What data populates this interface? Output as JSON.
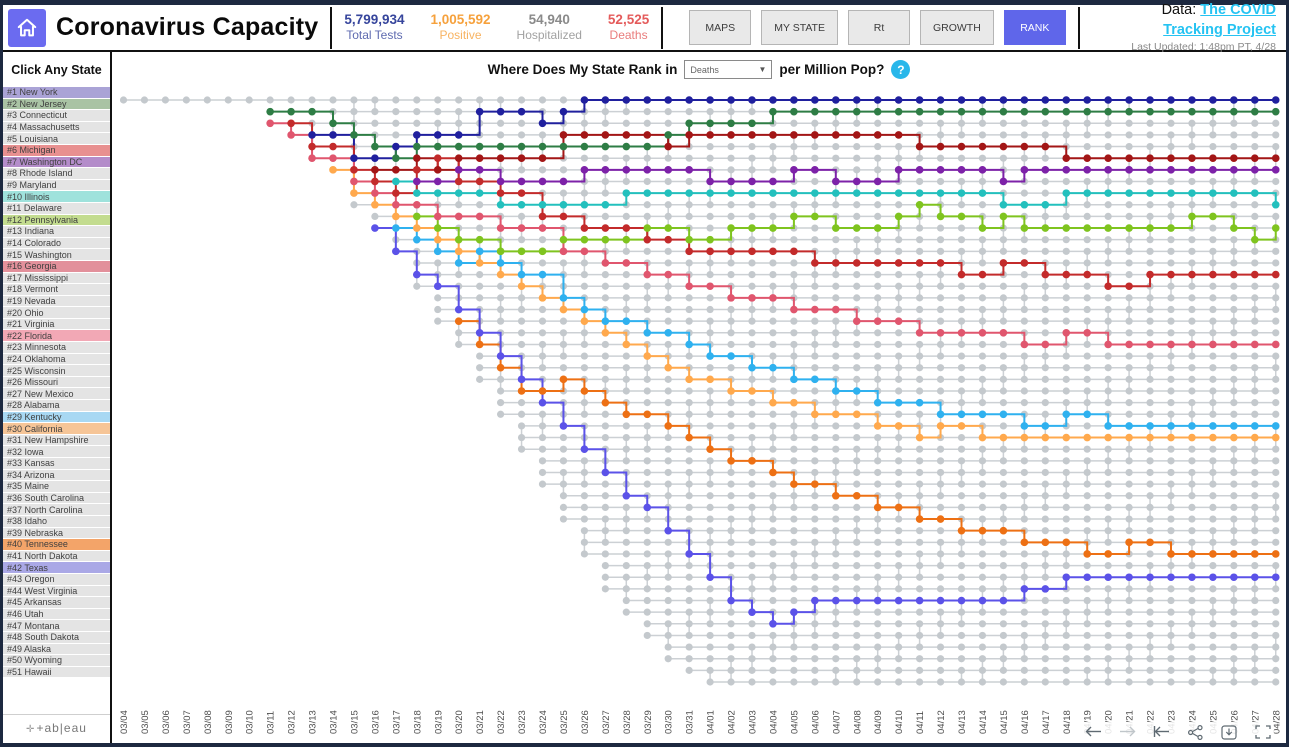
{
  "header": {
    "title": "Coronavirus Capacity",
    "home_icon": "house-icon",
    "stats": [
      {
        "value": "5,799,934",
        "label": "Total Tests",
        "color": "#36459c"
      },
      {
        "value": "1,005,592",
        "label": "Positive",
        "color": "#f6a13c"
      },
      {
        "value": "54,940",
        "label": "Hospitalized",
        "color": "#8a8a8a"
      },
      {
        "value": "52,525",
        "label": "Deaths",
        "color": "#e45b5b"
      }
    ],
    "nav": [
      {
        "label": "MAPS",
        "active": false
      },
      {
        "label": "MY STATE",
        "active": false
      },
      {
        "label": "Rt",
        "active": false
      },
      {
        "label": "GROWTH",
        "active": false
      },
      {
        "label": "RANK",
        "active": true
      }
    ],
    "active_color": "#5f66ea",
    "data_prefix": "Data:",
    "data_link": "The COVID Tracking Project",
    "link_color": "#25c3f2",
    "last_updated": "Last Updated: 1:48pm PT, 4/28"
  },
  "sidebar": {
    "title": "Click Any State",
    "default_bg": "#e4e4e4",
    "states": [
      {
        "label": "#1 New York",
        "bg": "#aaa3d6"
      },
      {
        "label": "#2 New Jersey",
        "bg": "#a9c3a4"
      },
      {
        "label": "#3 Connecticut",
        "bg": "#e4e4e4"
      },
      {
        "label": "#4 Massachusetts",
        "bg": "#e4e4e4"
      },
      {
        "label": "#5 Louisiana",
        "bg": "#e4e4e4"
      },
      {
        "label": "#6 Michigan",
        "bg": "#e89090"
      },
      {
        "label": "#7 Washington DC",
        "bg": "#b48cca"
      },
      {
        "label": "#8 Rhode Island",
        "bg": "#e4e4e4"
      },
      {
        "label": "#9 Maryland",
        "bg": "#e4e4e4"
      },
      {
        "label": "#10 Illinois",
        "bg": "#9fe2dc"
      },
      {
        "label": "#11 Delaware",
        "bg": "#e4e4e4"
      },
      {
        "label": "#12 Pennsylvania",
        "bg": "#c3dc8f"
      },
      {
        "label": "#13 Indiana",
        "bg": "#e4e4e4"
      },
      {
        "label": "#14 Colorado",
        "bg": "#e4e4e4"
      },
      {
        "label": "#15 Washington",
        "bg": "#e4e4e4"
      },
      {
        "label": "#16 Georgia",
        "bg": "#e2909b"
      },
      {
        "label": "#17 Mississippi",
        "bg": "#e4e4e4"
      },
      {
        "label": "#18 Vermont",
        "bg": "#e4e4e4"
      },
      {
        "label": "#19 Nevada",
        "bg": "#e4e4e4"
      },
      {
        "label": "#20 Ohio",
        "bg": "#e4e4e4"
      },
      {
        "label": "#21 Virginia",
        "bg": "#e4e4e4"
      },
      {
        "label": "#22 Florida",
        "bg": "#f2a8b5"
      },
      {
        "label": "#23 Minnesota",
        "bg": "#e4e4e4"
      },
      {
        "label": "#24 Oklahoma",
        "bg": "#e4e4e4"
      },
      {
        "label": "#25 Wisconsin",
        "bg": "#e4e4e4"
      },
      {
        "label": "#26 Missouri",
        "bg": "#e4e4e4"
      },
      {
        "label": "#27 New Mexico",
        "bg": "#e4e4e4"
      },
      {
        "label": "#28 Alabama",
        "bg": "#e4e4e4"
      },
      {
        "label": "#29 Kentucky",
        "bg": "#a8d8f3"
      },
      {
        "label": "#30 California",
        "bg": "#f6c597"
      },
      {
        "label": "#31 New Hampshire",
        "bg": "#e4e4e4"
      },
      {
        "label": "#32 Iowa",
        "bg": "#e4e4e4"
      },
      {
        "label": "#33 Kansas",
        "bg": "#e4e4e4"
      },
      {
        "label": "#34 Arizona",
        "bg": "#e4e4e4"
      },
      {
        "label": "#35 Maine",
        "bg": "#e4e4e4"
      },
      {
        "label": "#36 South Carolina",
        "bg": "#e4e4e4"
      },
      {
        "label": "#37 North Carolina",
        "bg": "#e4e4e4"
      },
      {
        "label": "#38 Idaho",
        "bg": "#e4e4e4"
      },
      {
        "label": "#39 Nebraska",
        "bg": "#e4e4e4"
      },
      {
        "label": "#40 Tennessee",
        "bg": "#f3a469"
      },
      {
        "label": "#41 North Dakota",
        "bg": "#e4e4e4"
      },
      {
        "label": "#42 Texas",
        "bg": "#aaa8e6"
      },
      {
        "label": "#43 Oregon",
        "bg": "#e4e4e4"
      },
      {
        "label": "#44 West Virginia",
        "bg": "#e4e4e4"
      },
      {
        "label": "#45 Arkansas",
        "bg": "#e4e4e4"
      },
      {
        "label": "#46 Utah",
        "bg": "#e4e4e4"
      },
      {
        "label": "#47 Montana",
        "bg": "#e4e4e4"
      },
      {
        "label": "#48 South Dakota",
        "bg": "#e4e4e4"
      },
      {
        "label": "#49 Alaska",
        "bg": "#e4e4e4"
      },
      {
        "label": "#50 Wyoming",
        "bg": "#e4e4e4"
      },
      {
        "label": "#51 Hawaii",
        "bg": "#e4e4e4"
      }
    ],
    "logo_text": "+ab|eau"
  },
  "chart_header": {
    "question_prefix": "Where Does My State Rank in",
    "dropdown_value": "Deaths",
    "dropdown_caret": "▼",
    "question_suffix": "per Million Pop?",
    "help_label": "?",
    "help_color": "#29b7ea"
  },
  "chart_data": {
    "type": "bump",
    "title": "Where Does My State Rank in Deaths per Million Pop?",
    "x_axis": "date",
    "rank_axis": {
      "min": 1,
      "max": 51,
      "inverted": true
    },
    "grid": false,
    "gray_dot_color": "#c4c9cd",
    "gray_line_color": "#ccd0d4",
    "dates": [
      "03/04",
      "03/05",
      "03/06",
      "03/07",
      "03/08",
      "03/09",
      "03/10",
      "03/11",
      "03/12",
      "03/13",
      "03/14",
      "03/15",
      "03/16",
      "03/17",
      "03/18",
      "03/19",
      "03/20",
      "03/21",
      "03/22",
      "03/23",
      "03/24",
      "03/25",
      "03/26",
      "03/27",
      "03/28",
      "03/29",
      "03/30",
      "03/31",
      "04/01",
      "04/02",
      "04/03",
      "04/04",
      "04/05",
      "04/06",
      "04/07",
      "04/08",
      "04/09",
      "04/10",
      "04/11",
      "04/12",
      "04/13",
      "04/14",
      "04/15",
      "04/16",
      "04/17",
      "04/18",
      "04/19",
      "04/20",
      "04/21",
      "04/22",
      "04/23",
      "04/24",
      "04/25",
      "04/26",
      "04/27",
      "04/28"
    ],
    "envelope_start_col": [
      0,
      7,
      7,
      8,
      9,
      9,
      10,
      11,
      11,
      11,
      12,
      12,
      13,
      13,
      14,
      14,
      14,
      15,
      15,
      15,
      16,
      16,
      17,
      17,
      17,
      18,
      18,
      18,
      19,
      19,
      19,
      20,
      20,
      20,
      21,
      21,
      21,
      22,
      22,
      22,
      23,
      23,
      23,
      24,
      24,
      25,
      25,
      26,
      26,
      27,
      28
    ],
    "series": [
      {
        "name": "New York",
        "final_rank": 1,
        "color": "#20209e",
        "start_col": 9,
        "ranks": [
          4,
          4,
          6,
          6,
          5,
          4,
          4,
          4,
          2,
          2,
          2,
          3,
          2,
          1,
          1,
          1,
          1,
          1,
          1,
          1,
          1,
          1,
          1,
          1,
          1,
          1,
          1,
          1,
          1,
          1,
          1,
          1,
          1,
          1,
          1,
          1,
          1,
          1,
          1,
          1,
          1,
          1,
          1,
          1,
          1,
          1,
          1
        ]
      },
      {
        "name": "New Jersey",
        "final_rank": 2,
        "color": "#2e7d45",
        "start_col": 7,
        "ranks": [
          2,
          2,
          2,
          3,
          4,
          5,
          6,
          5,
          5,
          5,
          5,
          5,
          5,
          5,
          5,
          5,
          5,
          5,
          5,
          4,
          3,
          3,
          3,
          3,
          2,
          2,
          2,
          2,
          2,
          2,
          2,
          2,
          2,
          2,
          2,
          2,
          2,
          2,
          2,
          2,
          2,
          2,
          2,
          2,
          2,
          2,
          2,
          2,
          2
        ]
      },
      {
        "name": "Michigan",
        "final_rank": 6,
        "color": "#a31616",
        "start_col": 12,
        "ranks": [
          7,
          7,
          6,
          7,
          6,
          6,
          6,
          6,
          6,
          4,
          4,
          4,
          4,
          4,
          5,
          4,
          4,
          4,
          4,
          4,
          4,
          4,
          4,
          4,
          4,
          4,
          5,
          5,
          5,
          5,
          5,
          5,
          5,
          6,
          6,
          6,
          6,
          6,
          6,
          6,
          6,
          6,
          6,
          6
        ]
      },
      {
        "name": "Washington DC",
        "final_rank": 7,
        "color": "#7d22a8",
        "start_col": 14,
        "ranks": [
          8,
          8,
          7,
          7,
          8,
          8,
          8,
          8,
          7,
          7,
          7,
          7,
          7,
          7,
          8,
          8,
          8,
          8,
          7,
          7,
          8,
          8,
          8,
          7,
          7,
          7,
          7,
          7,
          8,
          7,
          7,
          7,
          7,
          7,
          7,
          7,
          7,
          7,
          7,
          7,
          7,
          7
        ]
      },
      {
        "name": "Illinois",
        "final_rank": 10,
        "color": "#23c0bd",
        "start_col": 13,
        "ranks": [
          8,
          9,
          9,
          9,
          9,
          10,
          10,
          10,
          10,
          10,
          10,
          9,
          9,
          9,
          9,
          9,
          9,
          9,
          9,
          9,
          9,
          9,
          9,
          9,
          9,
          9,
          9,
          9,
          9,
          10,
          10,
          10,
          9,
          9,
          9,
          9,
          9,
          9,
          9,
          9,
          9,
          9,
          10
        ]
      },
      {
        "name": "Pennsylvania",
        "final_rank": 12,
        "color": "#7fc41f",
        "start_col": 14,
        "ranks": [
          11,
          12,
          13,
          13,
          14,
          14,
          14,
          13,
          13,
          13,
          13,
          12,
          12,
          13,
          13,
          12,
          12,
          12,
          11,
          11,
          12,
          12,
          12,
          11,
          10,
          11,
          11,
          12,
          11,
          12,
          12,
          12,
          12,
          12,
          12,
          12,
          12,
          11,
          11,
          12,
          13,
          12
        ]
      },
      {
        "name": "Georgia",
        "final_rank": 16,
        "color": "#c32b2b",
        "start_col": 8,
        "ranks": [
          3,
          5,
          5,
          7,
          8,
          9,
          7,
          6,
          8,
          8,
          9,
          9,
          11,
          11,
          12,
          12,
          12,
          13,
          13,
          14,
          14,
          14,
          14,
          14,
          14,
          15,
          15,
          15,
          15,
          15,
          15,
          15,
          16,
          16,
          15,
          15,
          16,
          16,
          16,
          17,
          17,
          16,
          16,
          16,
          16,
          16,
          16,
          16
        ]
      },
      {
        "name": "Florida",
        "final_rank": 22,
        "color": "#e0566e",
        "start_col": 7,
        "ranks": [
          3,
          4,
          6,
          6,
          8,
          9,
          10,
          10,
          11,
          11,
          11,
          12,
          12,
          12,
          14,
          14,
          15,
          15,
          16,
          16,
          17,
          17,
          18,
          18,
          18,
          19,
          19,
          19,
          20,
          20,
          20,
          21,
          21,
          21,
          21,
          21,
          22,
          22,
          21,
          21,
          22,
          22,
          22,
          22,
          22,
          22,
          22,
          22,
          22
        ]
      },
      {
        "name": "Kentucky",
        "final_rank": 29,
        "color": "#2fb1ef",
        "start_col": 13,
        "ranks": [
          12,
          13,
          14,
          15,
          14,
          15,
          16,
          16,
          18,
          19,
          20,
          20,
          21,
          21,
          22,
          23,
          23,
          24,
          24,
          25,
          25,
          26,
          26,
          27,
          27,
          27,
          28,
          28,
          28,
          28,
          29,
          29,
          28,
          28,
          29,
          29,
          29,
          29,
          29,
          29,
          29,
          29,
          29
        ]
      },
      {
        "name": "California",
        "final_rank": 30,
        "color": "#ffa94d",
        "start_col": 10,
        "ranks": [
          7,
          9,
          10,
          11,
          12,
          13,
          14,
          15,
          16,
          17,
          18,
          19,
          20,
          21,
          22,
          23,
          24,
          25,
          25,
          26,
          26,
          27,
          27,
          28,
          28,
          28,
          29,
          29,
          30,
          29,
          29,
          30,
          30,
          30,
          30,
          30,
          30,
          30,
          30,
          30,
          30,
          30,
          30,
          30,
          30,
          30
        ]
      },
      {
        "name": "Tennessee",
        "final_rank": 40,
        "color": "#ed7014",
        "start_col": 16,
        "ranks": [
          20,
          22,
          24,
          26,
          26,
          25,
          26,
          27,
          28,
          28,
          29,
          30,
          31,
          32,
          32,
          33,
          34,
          34,
          35,
          35,
          36,
          36,
          37,
          37,
          38,
          38,
          38,
          39,
          39,
          39,
          40,
          40,
          39,
          39,
          40,
          40,
          40,
          40,
          40,
          40
        ]
      },
      {
        "name": "Texas",
        "final_rank": 42,
        "color": "#5b52e8",
        "start_col": 12,
        "ranks": [
          12,
          14,
          16,
          17,
          19,
          21,
          23,
          25,
          27,
          29,
          31,
          33,
          35,
          36,
          38,
          40,
          42,
          44,
          45,
          46,
          45,
          44,
          44,
          44,
          44,
          44,
          44,
          44,
          44,
          44,
          44,
          43,
          43,
          42,
          42,
          42,
          42,
          42,
          42,
          42,
          42,
          42,
          42,
          42
        ]
      }
    ]
  },
  "toolbar": {
    "icons": [
      {
        "name": "undo-icon",
        "dim": false
      },
      {
        "name": "redo-icon",
        "dim": true
      },
      {
        "name": "reset-icon",
        "dim": false
      },
      {
        "name": "share-icon",
        "dim": false
      },
      {
        "name": "download-icon",
        "dim": false
      },
      {
        "name": "fullscreen-icon",
        "dim": false
      }
    ]
  }
}
